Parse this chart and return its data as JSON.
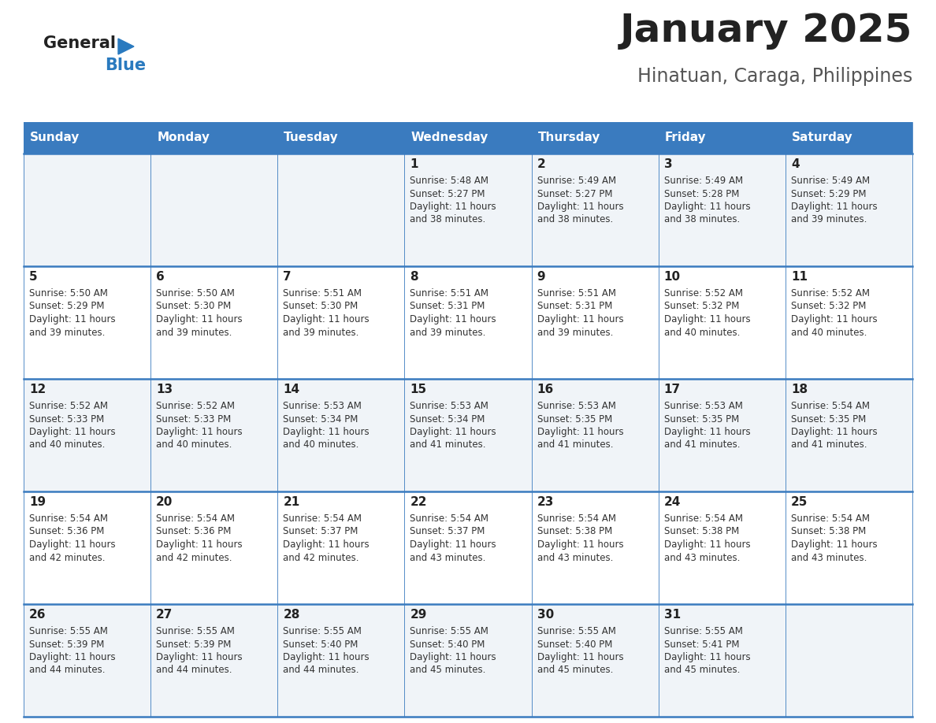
{
  "title": "January 2025",
  "subtitle": "Hinatuan, Caraga, Philippines",
  "header_bg_color": "#3a7bbf",
  "header_text_color": "#ffffff",
  "day_names": [
    "Sunday",
    "Monday",
    "Tuesday",
    "Wednesday",
    "Thursday",
    "Friday",
    "Saturday"
  ],
  "row_bg_even": "#f0f4f8",
  "row_bg_odd": "#ffffff",
  "cell_border_color": "#3a7bbf",
  "title_color": "#222222",
  "subtitle_color": "#555555",
  "day_number_color": "#222222",
  "cell_text_color": "#333333",
  "logo_general_color": "#222222",
  "logo_blue_color": "#2a7abf",
  "logo_triangle_color": "#2a7abf",
  "calendar": [
    [
      {
        "day": "",
        "sunrise": "",
        "sunset": "",
        "daylight": ""
      },
      {
        "day": "",
        "sunrise": "",
        "sunset": "",
        "daylight": ""
      },
      {
        "day": "",
        "sunrise": "",
        "sunset": "",
        "daylight": ""
      },
      {
        "day": "1",
        "sunrise": "5:48 AM",
        "sunset": "5:27 PM",
        "daylight": "11 hours and 38 minutes."
      },
      {
        "day": "2",
        "sunrise": "5:49 AM",
        "sunset": "5:27 PM",
        "daylight": "11 hours and 38 minutes."
      },
      {
        "day": "3",
        "sunrise": "5:49 AM",
        "sunset": "5:28 PM",
        "daylight": "11 hours and 38 minutes."
      },
      {
        "day": "4",
        "sunrise": "5:49 AM",
        "sunset": "5:29 PM",
        "daylight": "11 hours and 39 minutes."
      }
    ],
    [
      {
        "day": "5",
        "sunrise": "5:50 AM",
        "sunset": "5:29 PM",
        "daylight": "11 hours and 39 minutes."
      },
      {
        "day": "6",
        "sunrise": "5:50 AM",
        "sunset": "5:30 PM",
        "daylight": "11 hours and 39 minutes."
      },
      {
        "day": "7",
        "sunrise": "5:51 AM",
        "sunset": "5:30 PM",
        "daylight": "11 hours and 39 minutes."
      },
      {
        "day": "8",
        "sunrise": "5:51 AM",
        "sunset": "5:31 PM",
        "daylight": "11 hours and 39 minutes."
      },
      {
        "day": "9",
        "sunrise": "5:51 AM",
        "sunset": "5:31 PM",
        "daylight": "11 hours and 39 minutes."
      },
      {
        "day": "10",
        "sunrise": "5:52 AM",
        "sunset": "5:32 PM",
        "daylight": "11 hours and 40 minutes."
      },
      {
        "day": "11",
        "sunrise": "5:52 AM",
        "sunset": "5:32 PM",
        "daylight": "11 hours and 40 minutes."
      }
    ],
    [
      {
        "day": "12",
        "sunrise": "5:52 AM",
        "sunset": "5:33 PM",
        "daylight": "11 hours and 40 minutes."
      },
      {
        "day": "13",
        "sunrise": "5:52 AM",
        "sunset": "5:33 PM",
        "daylight": "11 hours and 40 minutes."
      },
      {
        "day": "14",
        "sunrise": "5:53 AM",
        "sunset": "5:34 PM",
        "daylight": "11 hours and 40 minutes."
      },
      {
        "day": "15",
        "sunrise": "5:53 AM",
        "sunset": "5:34 PM",
        "daylight": "11 hours and 41 minutes."
      },
      {
        "day": "16",
        "sunrise": "5:53 AM",
        "sunset": "5:35 PM",
        "daylight": "11 hours and 41 minutes."
      },
      {
        "day": "17",
        "sunrise": "5:53 AM",
        "sunset": "5:35 PM",
        "daylight": "11 hours and 41 minutes."
      },
      {
        "day": "18",
        "sunrise": "5:54 AM",
        "sunset": "5:35 PM",
        "daylight": "11 hours and 41 minutes."
      }
    ],
    [
      {
        "day": "19",
        "sunrise": "5:54 AM",
        "sunset": "5:36 PM",
        "daylight": "11 hours and 42 minutes."
      },
      {
        "day": "20",
        "sunrise": "5:54 AM",
        "sunset": "5:36 PM",
        "daylight": "11 hours and 42 minutes."
      },
      {
        "day": "21",
        "sunrise": "5:54 AM",
        "sunset": "5:37 PM",
        "daylight": "11 hours and 42 minutes."
      },
      {
        "day": "22",
        "sunrise": "5:54 AM",
        "sunset": "5:37 PM",
        "daylight": "11 hours and 43 minutes."
      },
      {
        "day": "23",
        "sunrise": "5:54 AM",
        "sunset": "5:38 PM",
        "daylight": "11 hours and 43 minutes."
      },
      {
        "day": "24",
        "sunrise": "5:54 AM",
        "sunset": "5:38 PM",
        "daylight": "11 hours and 43 minutes."
      },
      {
        "day": "25",
        "sunrise": "5:54 AM",
        "sunset": "5:38 PM",
        "daylight": "11 hours and 43 minutes."
      }
    ],
    [
      {
        "day": "26",
        "sunrise": "5:55 AM",
        "sunset": "5:39 PM",
        "daylight": "11 hours and 44 minutes."
      },
      {
        "day": "27",
        "sunrise": "5:55 AM",
        "sunset": "5:39 PM",
        "daylight": "11 hours and 44 minutes."
      },
      {
        "day": "28",
        "sunrise": "5:55 AM",
        "sunset": "5:40 PM",
        "daylight": "11 hours and 44 minutes."
      },
      {
        "day": "29",
        "sunrise": "5:55 AM",
        "sunset": "5:40 PM",
        "daylight": "11 hours and 45 minutes."
      },
      {
        "day": "30",
        "sunrise": "5:55 AM",
        "sunset": "5:40 PM",
        "daylight": "11 hours and 45 minutes."
      },
      {
        "day": "31",
        "sunrise": "5:55 AM",
        "sunset": "5:41 PM",
        "daylight": "11 hours and 45 minutes."
      },
      {
        "day": "",
        "sunrise": "",
        "sunset": "",
        "daylight": ""
      }
    ]
  ]
}
